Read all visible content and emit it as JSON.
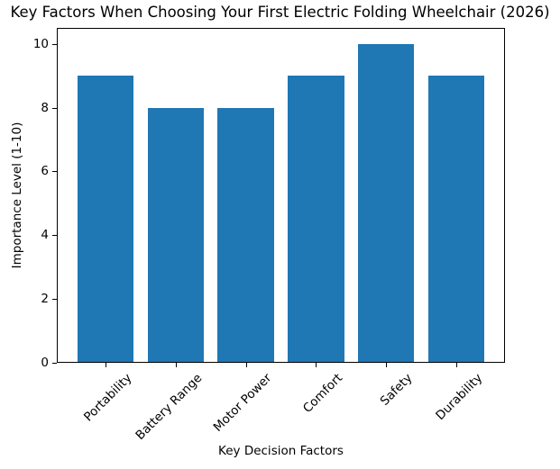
{
  "chart_data": {
    "type": "bar",
    "title": "Key Factors When Choosing Your First Electric Folding Wheelchair (2026)",
    "categories": [
      "Portability",
      "Battery Range",
      "Motor Power",
      "Comfort",
      "Safety",
      "Durability"
    ],
    "values": [
      9,
      8,
      8,
      9,
      10,
      9
    ],
    "xlabel": "Key Decision Factors",
    "ylabel": "Importance Level (1-10)",
    "ylim": [
      0,
      10.5
    ],
    "yticks": [
      0,
      2,
      4,
      6,
      8,
      10
    ],
    "bar_color": "#1f77b4",
    "bar_width_fraction": 0.8,
    "xtick_rotation_deg": 45,
    "grid": false,
    "legend_position": "none"
  }
}
